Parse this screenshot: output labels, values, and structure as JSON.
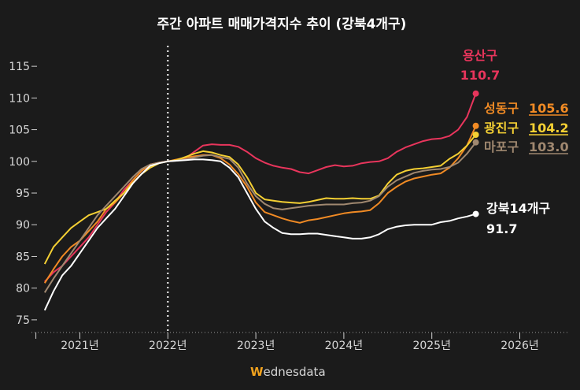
{
  "chart_data": {
    "type": "line",
    "title": "주간 아파트 매매가격지수 추이 (강북4개구)",
    "ylim": [
      73,
      118
    ],
    "y_ticks": [
      75,
      80,
      85,
      90,
      95,
      100,
      105,
      110,
      115
    ],
    "x_ticks": [
      "2021년",
      "2022년",
      "2023년",
      "2024년",
      "2025년",
      "2026년"
    ],
    "xlim": [
      2020.45,
      2026.55
    ],
    "reference_line_x": 2022.0,
    "series": [
      {
        "name": "용산구",
        "color": "#e8355c",
        "last_label": "110.7",
        "underline": false,
        "x": [
          2020.6,
          2020.7,
          2020.8,
          2020.9,
          2021.0,
          2021.1,
          2021.2,
          2021.3,
          2021.4,
          2021.5,
          2021.6,
          2021.7,
          2021.8,
          2021.9,
          2022.0,
          2022.1,
          2022.2,
          2022.3,
          2022.4,
          2022.5,
          2022.6,
          2022.7,
          2022.8,
          2022.9,
          2023.0,
          2023.1,
          2023.2,
          2023.3,
          2023.4,
          2023.5,
          2023.6,
          2023.7,
          2023.8,
          2023.9,
          2024.0,
          2024.1,
          2024.2,
          2024.3,
          2024.4,
          2024.5,
          2024.6,
          2024.7,
          2024.8,
          2024.9,
          2025.0,
          2025.1,
          2025.2,
          2025.3,
          2025.4,
          2025.5
        ],
        "y": [
          81,
          82.5,
          83.5,
          85,
          86.5,
          88,
          90,
          92,
          93.5,
          95.5,
          97,
          98.5,
          99.5,
          99.8,
          100,
          100.2,
          100.5,
          101.5,
          102.5,
          102.7,
          102.6,
          102.6,
          102.3,
          101.5,
          100.5,
          99.8,
          99.3,
          99,
          98.8,
          98.3,
          98.1,
          98.6,
          99.1,
          99.4,
          99.2,
          99.3,
          99.7,
          99.9,
          100,
          100.5,
          101.5,
          102.2,
          102.7,
          103.2,
          103.5,
          103.6,
          104,
          105,
          107,
          110.7
        ]
      },
      {
        "name": "성동구",
        "color": "#f08a24",
        "last_label": "105.6",
        "underline": true,
        "x": [
          2020.6,
          2020.7,
          2020.8,
          2020.9,
          2021.0,
          2021.1,
          2021.2,
          2021.3,
          2021.4,
          2021.5,
          2021.6,
          2021.7,
          2021.8,
          2021.9,
          2022.0,
          2022.1,
          2022.2,
          2022.3,
          2022.4,
          2022.5,
          2022.6,
          2022.7,
          2022.8,
          2022.9,
          2023.0,
          2023.1,
          2023.2,
          2023.3,
          2023.4,
          2023.5,
          2023.6,
          2023.7,
          2023.8,
          2023.9,
          2024.0,
          2024.1,
          2024.2,
          2024.3,
          2024.4,
          2024.5,
          2024.6,
          2024.7,
          2024.8,
          2024.9,
          2025.0,
          2025.1,
          2025.2,
          2025.3,
          2025.4,
          2025.5
        ],
        "y": [
          80.8,
          83,
          85,
          86.5,
          87.5,
          89,
          90.5,
          92.5,
          93.5,
          95,
          97,
          98.5,
          99.5,
          99.8,
          100,
          100.3,
          100.6,
          100.8,
          101,
          101,
          100.5,
          99.5,
          98,
          96,
          93.5,
          92,
          91.5,
          91,
          90.6,
          90.3,
          90.7,
          90.9,
          91.2,
          91.5,
          91.8,
          92,
          92.1,
          92.3,
          93.4,
          95,
          96,
          96.8,
          97.3,
          97.6,
          97.9,
          98.1,
          99,
          100.5,
          102.5,
          105.6
        ]
      },
      {
        "name": "광진구",
        "color": "#f5d033",
        "last_label": "104.2",
        "underline": true,
        "x": [
          2020.6,
          2020.7,
          2020.8,
          2020.9,
          2021.0,
          2021.1,
          2021.2,
          2021.3,
          2021.4,
          2021.5,
          2021.6,
          2021.7,
          2021.8,
          2021.9,
          2022.0,
          2022.1,
          2022.2,
          2022.3,
          2022.4,
          2022.5,
          2022.6,
          2022.7,
          2022.8,
          2022.9,
          2023.0,
          2023.1,
          2023.2,
          2023.3,
          2023.4,
          2023.5,
          2023.6,
          2023.7,
          2023.8,
          2023.9,
          2024.0,
          2024.1,
          2024.2,
          2024.3,
          2024.4,
          2024.5,
          2024.6,
          2024.7,
          2024.8,
          2024.9,
          2025.0,
          2025.1,
          2025.2,
          2025.3,
          2025.4,
          2025.5
        ],
        "y": [
          83.8,
          86.5,
          88,
          89.5,
          90.5,
          91.5,
          92,
          92.5,
          93.8,
          95,
          96.6,
          98,
          99,
          99.7,
          100,
          100.2,
          100.7,
          101.2,
          101.6,
          101.4,
          101,
          100.7,
          99.5,
          97.5,
          95,
          94,
          93.8,
          93.6,
          93.5,
          93.4,
          93.6,
          93.9,
          94.2,
          94.1,
          94.1,
          94.2,
          94.1,
          94.1,
          94.6,
          96.5,
          97.9,
          98.5,
          98.8,
          98.9,
          99.1,
          99.3,
          100.4,
          101.2,
          102.5,
          104.2
        ]
      },
      {
        "name": "마포구",
        "color": "#a08870",
        "last_label": "103.0",
        "underline": true,
        "x": [
          2020.6,
          2020.7,
          2020.8,
          2020.9,
          2021.0,
          2021.1,
          2021.2,
          2021.3,
          2021.4,
          2021.5,
          2021.6,
          2021.7,
          2021.8,
          2021.9,
          2022.0,
          2022.1,
          2022.2,
          2022.3,
          2022.4,
          2022.5,
          2022.6,
          2022.7,
          2022.8,
          2022.9,
          2023.0,
          2023.1,
          2023.2,
          2023.3,
          2023.4,
          2023.5,
          2023.6,
          2023.7,
          2023.8,
          2023.9,
          2024.0,
          2024.1,
          2024.2,
          2024.3,
          2024.4,
          2024.5,
          2024.6,
          2024.7,
          2024.8,
          2024.9,
          2025.0,
          2025.1,
          2025.2,
          2025.3,
          2025.4,
          2025.5
        ],
        "y": [
          79.3,
          81.5,
          83.5,
          85.5,
          87.5,
          89.5,
          91.5,
          93,
          94.5,
          96,
          97.5,
          98.8,
          99.5,
          99.8,
          100,
          100.1,
          100.3,
          100.6,
          100.9,
          101,
          100.7,
          100.4,
          99,
          96.5,
          94.5,
          93.3,
          92.6,
          92.4,
          92.6,
          92.8,
          93,
          93.1,
          93.2,
          93.2,
          93.2,
          93.4,
          93.5,
          93.8,
          94.5,
          96,
          97,
          97.6,
          98.2,
          98.5,
          98.7,
          98.8,
          99.1,
          99.8,
          101.2,
          103.0
        ]
      },
      {
        "name": "강북14개구",
        "color": "#ffffff",
        "last_label": "91.7",
        "underline": false,
        "x": [
          2020.6,
          2020.7,
          2020.8,
          2020.9,
          2021.0,
          2021.1,
          2021.2,
          2021.3,
          2021.4,
          2021.5,
          2021.6,
          2021.7,
          2021.8,
          2021.9,
          2022.0,
          2022.1,
          2022.2,
          2022.3,
          2022.4,
          2022.5,
          2022.6,
          2022.7,
          2022.8,
          2022.9,
          2023.0,
          2023.1,
          2023.2,
          2023.3,
          2023.4,
          2023.5,
          2023.6,
          2023.7,
          2023.8,
          2023.9,
          2024.0,
          2024.1,
          2024.2,
          2024.3,
          2024.4,
          2024.5,
          2024.6,
          2024.7,
          2024.8,
          2024.9,
          2025.0,
          2025.1,
          2025.2,
          2025.3,
          2025.4,
          2025.5
        ],
        "y": [
          76.5,
          79.5,
          82,
          83.5,
          85.5,
          87.5,
          89.5,
          91,
          92.5,
          94.5,
          96.5,
          98,
          99.3,
          99.7,
          100,
          100.1,
          100.2,
          100.3,
          100.3,
          100.2,
          100,
          99,
          97.5,
          95,
          92.5,
          90.5,
          89.5,
          88.7,
          88.5,
          88.5,
          88.6,
          88.6,
          88.4,
          88.2,
          88,
          87.8,
          87.8,
          88,
          88.5,
          89.3,
          89.7,
          89.9,
          90,
          90,
          90,
          90.4,
          90.6,
          91,
          91.3,
          91.7
        ]
      }
    ]
  },
  "brand": {
    "accent": "W",
    "rest": "ednesdata"
  }
}
